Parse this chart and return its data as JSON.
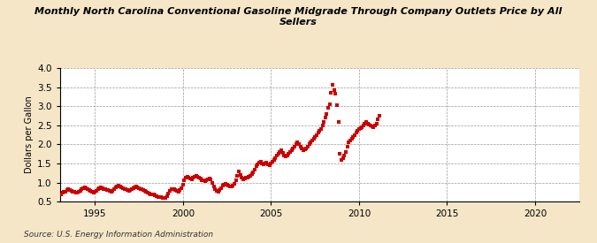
{
  "title": "Monthly North Carolina Conventional Gasoline Midgrade Through Company Outlets Price by All\nSellers",
  "ylabel": "Dollars per Gallon",
  "source": "Source: U.S. Energy Information Administration",
  "background_color": "#f5e6c8",
  "plot_background_color": "#ffffff",
  "marker_color": "#cc0000",
  "xlim": [
    1993.0,
    2022.5
  ],
  "ylim": [
    0.5,
    4.0
  ],
  "yticks": [
    0.5,
    1.0,
    1.5,
    2.0,
    2.5,
    3.0,
    3.5,
    4.0
  ],
  "xticks": [
    1995,
    2000,
    2005,
    2010,
    2015,
    2020
  ],
  "data": [
    [
      1993.08,
      0.7
    ],
    [
      1993.17,
      0.73
    ],
    [
      1993.25,
      0.75
    ],
    [
      1993.33,
      0.77
    ],
    [
      1993.42,
      0.8
    ],
    [
      1993.5,
      0.83
    ],
    [
      1993.58,
      0.81
    ],
    [
      1993.67,
      0.79
    ],
    [
      1993.75,
      0.77
    ],
    [
      1993.83,
      0.75
    ],
    [
      1993.92,
      0.73
    ],
    [
      1994.0,
      0.73
    ],
    [
      1994.08,
      0.75
    ],
    [
      1994.17,
      0.78
    ],
    [
      1994.25,
      0.82
    ],
    [
      1994.33,
      0.86
    ],
    [
      1994.42,
      0.87
    ],
    [
      1994.5,
      0.86
    ],
    [
      1994.58,
      0.83
    ],
    [
      1994.67,
      0.8
    ],
    [
      1994.75,
      0.78
    ],
    [
      1994.83,
      0.75
    ],
    [
      1994.92,
      0.74
    ],
    [
      1995.0,
      0.75
    ],
    [
      1995.08,
      0.78
    ],
    [
      1995.17,
      0.82
    ],
    [
      1995.25,
      0.86
    ],
    [
      1995.33,
      0.87
    ],
    [
      1995.42,
      0.86
    ],
    [
      1995.5,
      0.84
    ],
    [
      1995.58,
      0.82
    ],
    [
      1995.67,
      0.81
    ],
    [
      1995.75,
      0.8
    ],
    [
      1995.83,
      0.78
    ],
    [
      1995.92,
      0.77
    ],
    [
      1996.0,
      0.79
    ],
    [
      1996.08,
      0.83
    ],
    [
      1996.17,
      0.87
    ],
    [
      1996.25,
      0.91
    ],
    [
      1996.33,
      0.92
    ],
    [
      1996.42,
      0.91
    ],
    [
      1996.5,
      0.88
    ],
    [
      1996.58,
      0.85
    ],
    [
      1996.67,
      0.83
    ],
    [
      1996.75,
      0.82
    ],
    [
      1996.83,
      0.8
    ],
    [
      1996.92,
      0.79
    ],
    [
      1997.0,
      0.8
    ],
    [
      1997.08,
      0.82
    ],
    [
      1997.17,
      0.85
    ],
    [
      1997.25,
      0.88
    ],
    [
      1997.33,
      0.89
    ],
    [
      1997.42,
      0.88
    ],
    [
      1997.5,
      0.86
    ],
    [
      1997.58,
      0.84
    ],
    [
      1997.67,
      0.82
    ],
    [
      1997.75,
      0.8
    ],
    [
      1997.83,
      0.78
    ],
    [
      1997.92,
      0.76
    ],
    [
      1998.0,
      0.74
    ],
    [
      1998.08,
      0.72
    ],
    [
      1998.17,
      0.7
    ],
    [
      1998.25,
      0.69
    ],
    [
      1998.33,
      0.68
    ],
    [
      1998.42,
      0.67
    ],
    [
      1998.5,
      0.65
    ],
    [
      1998.58,
      0.63
    ],
    [
      1998.67,
      0.62
    ],
    [
      1998.75,
      0.61
    ],
    [
      1998.83,
      0.6
    ],
    [
      1998.92,
      0.59
    ],
    [
      1999.0,
      0.6
    ],
    [
      1999.08,
      0.65
    ],
    [
      1999.17,
      0.72
    ],
    [
      1999.25,
      0.78
    ],
    [
      1999.33,
      0.82
    ],
    [
      1999.42,
      0.84
    ],
    [
      1999.5,
      0.83
    ],
    [
      1999.58,
      0.8
    ],
    [
      1999.67,
      0.78
    ],
    [
      1999.75,
      0.77
    ],
    [
      1999.83,
      0.8
    ],
    [
      1999.92,
      0.85
    ],
    [
      2000.0,
      0.95
    ],
    [
      2000.08,
      1.05
    ],
    [
      2000.17,
      1.12
    ],
    [
      2000.25,
      1.15
    ],
    [
      2000.33,
      1.13
    ],
    [
      2000.42,
      1.1
    ],
    [
      2000.5,
      1.08
    ],
    [
      2000.58,
      1.12
    ],
    [
      2000.67,
      1.15
    ],
    [
      2000.75,
      1.18
    ],
    [
      2000.83,
      1.16
    ],
    [
      2000.92,
      1.13
    ],
    [
      2001.0,
      1.1
    ],
    [
      2001.08,
      1.07
    ],
    [
      2001.17,
      1.05
    ],
    [
      2001.25,
      1.03
    ],
    [
      2001.33,
      1.05
    ],
    [
      2001.42,
      1.08
    ],
    [
      2001.5,
      1.1
    ],
    [
      2001.58,
      1.08
    ],
    [
      2001.67,
      1.0
    ],
    [
      2001.75,
      0.9
    ],
    [
      2001.83,
      0.82
    ],
    [
      2001.92,
      0.78
    ],
    [
      2002.0,
      0.77
    ],
    [
      2002.08,
      0.8
    ],
    [
      2002.17,
      0.86
    ],
    [
      2002.25,
      0.92
    ],
    [
      2002.33,
      0.95
    ],
    [
      2002.42,
      0.97
    ],
    [
      2002.5,
      0.95
    ],
    [
      2002.58,
      0.93
    ],
    [
      2002.67,
      0.91
    ],
    [
      2002.75,
      0.9
    ],
    [
      2002.83,
      0.92
    ],
    [
      2002.92,
      0.97
    ],
    [
      2003.0,
      1.05
    ],
    [
      2003.08,
      1.18
    ],
    [
      2003.17,
      1.3
    ],
    [
      2003.25,
      1.2
    ],
    [
      2003.33,
      1.12
    ],
    [
      2003.42,
      1.08
    ],
    [
      2003.5,
      1.1
    ],
    [
      2003.58,
      1.12
    ],
    [
      2003.67,
      1.14
    ],
    [
      2003.75,
      1.16
    ],
    [
      2003.83,
      1.18
    ],
    [
      2003.92,
      1.22
    ],
    [
      2004.0,
      1.28
    ],
    [
      2004.08,
      1.35
    ],
    [
      2004.17,
      1.42
    ],
    [
      2004.25,
      1.48
    ],
    [
      2004.33,
      1.52
    ],
    [
      2004.42,
      1.55
    ],
    [
      2004.5,
      1.5
    ],
    [
      2004.58,
      1.48
    ],
    [
      2004.67,
      1.5
    ],
    [
      2004.75,
      1.52
    ],
    [
      2004.83,
      1.48
    ],
    [
      2004.92,
      1.45
    ],
    [
      2005.0,
      1.5
    ],
    [
      2005.08,
      1.55
    ],
    [
      2005.17,
      1.6
    ],
    [
      2005.25,
      1.65
    ],
    [
      2005.33,
      1.7
    ],
    [
      2005.42,
      1.75
    ],
    [
      2005.5,
      1.8
    ],
    [
      2005.58,
      1.85
    ],
    [
      2005.67,
      1.78
    ],
    [
      2005.75,
      1.72
    ],
    [
      2005.83,
      1.68
    ],
    [
      2005.92,
      1.7
    ],
    [
      2006.0,
      1.75
    ],
    [
      2006.08,
      1.8
    ],
    [
      2006.17,
      1.85
    ],
    [
      2006.25,
      1.9
    ],
    [
      2006.33,
      1.95
    ],
    [
      2006.42,
      2.0
    ],
    [
      2006.5,
      2.05
    ],
    [
      2006.58,
      2.0
    ],
    [
      2006.67,
      1.95
    ],
    [
      2006.75,
      1.9
    ],
    [
      2006.83,
      1.85
    ],
    [
      2006.92,
      1.88
    ],
    [
      2007.0,
      1.9
    ],
    [
      2007.08,
      1.95
    ],
    [
      2007.17,
      2.0
    ],
    [
      2007.25,
      2.05
    ],
    [
      2007.33,
      2.1
    ],
    [
      2007.42,
      2.15
    ],
    [
      2007.5,
      2.2
    ],
    [
      2007.58,
      2.25
    ],
    [
      2007.67,
      2.3
    ],
    [
      2007.75,
      2.35
    ],
    [
      2007.83,
      2.4
    ],
    [
      2007.92,
      2.5
    ],
    [
      2008.0,
      2.6
    ],
    [
      2008.08,
      2.7
    ],
    [
      2008.17,
      2.8
    ],
    [
      2008.25,
      2.95
    ],
    [
      2008.33,
      3.05
    ],
    [
      2008.42,
      3.35
    ],
    [
      2008.5,
      3.55
    ],
    [
      2008.58,
      3.42
    ],
    [
      2008.67,
      3.32
    ],
    [
      2008.75,
      3.02
    ],
    [
      2008.83,
      2.6
    ],
    [
      2008.92,
      1.75
    ],
    [
      2009.0,
      1.6
    ],
    [
      2009.08,
      1.65
    ],
    [
      2009.17,
      1.7
    ],
    [
      2009.25,
      1.8
    ],
    [
      2009.33,
      1.95
    ],
    [
      2009.42,
      2.05
    ],
    [
      2009.5,
      2.1
    ],
    [
      2009.58,
      2.15
    ],
    [
      2009.67,
      2.2
    ],
    [
      2009.75,
      2.25
    ],
    [
      2009.83,
      2.3
    ],
    [
      2009.92,
      2.35
    ],
    [
      2010.0,
      2.4
    ],
    [
      2010.08,
      2.42
    ],
    [
      2010.17,
      2.45
    ],
    [
      2010.25,
      2.5
    ],
    [
      2010.33,
      2.55
    ],
    [
      2010.42,
      2.58
    ],
    [
      2010.5,
      2.55
    ],
    [
      2010.58,
      2.52
    ],
    [
      2010.67,
      2.5
    ],
    [
      2010.75,
      2.48
    ],
    [
      2010.83,
      2.45
    ],
    [
      2010.92,
      2.5
    ],
    [
      2011.0,
      2.55
    ],
    [
      2011.08,
      2.65
    ],
    [
      2011.17,
      2.75
    ]
  ]
}
